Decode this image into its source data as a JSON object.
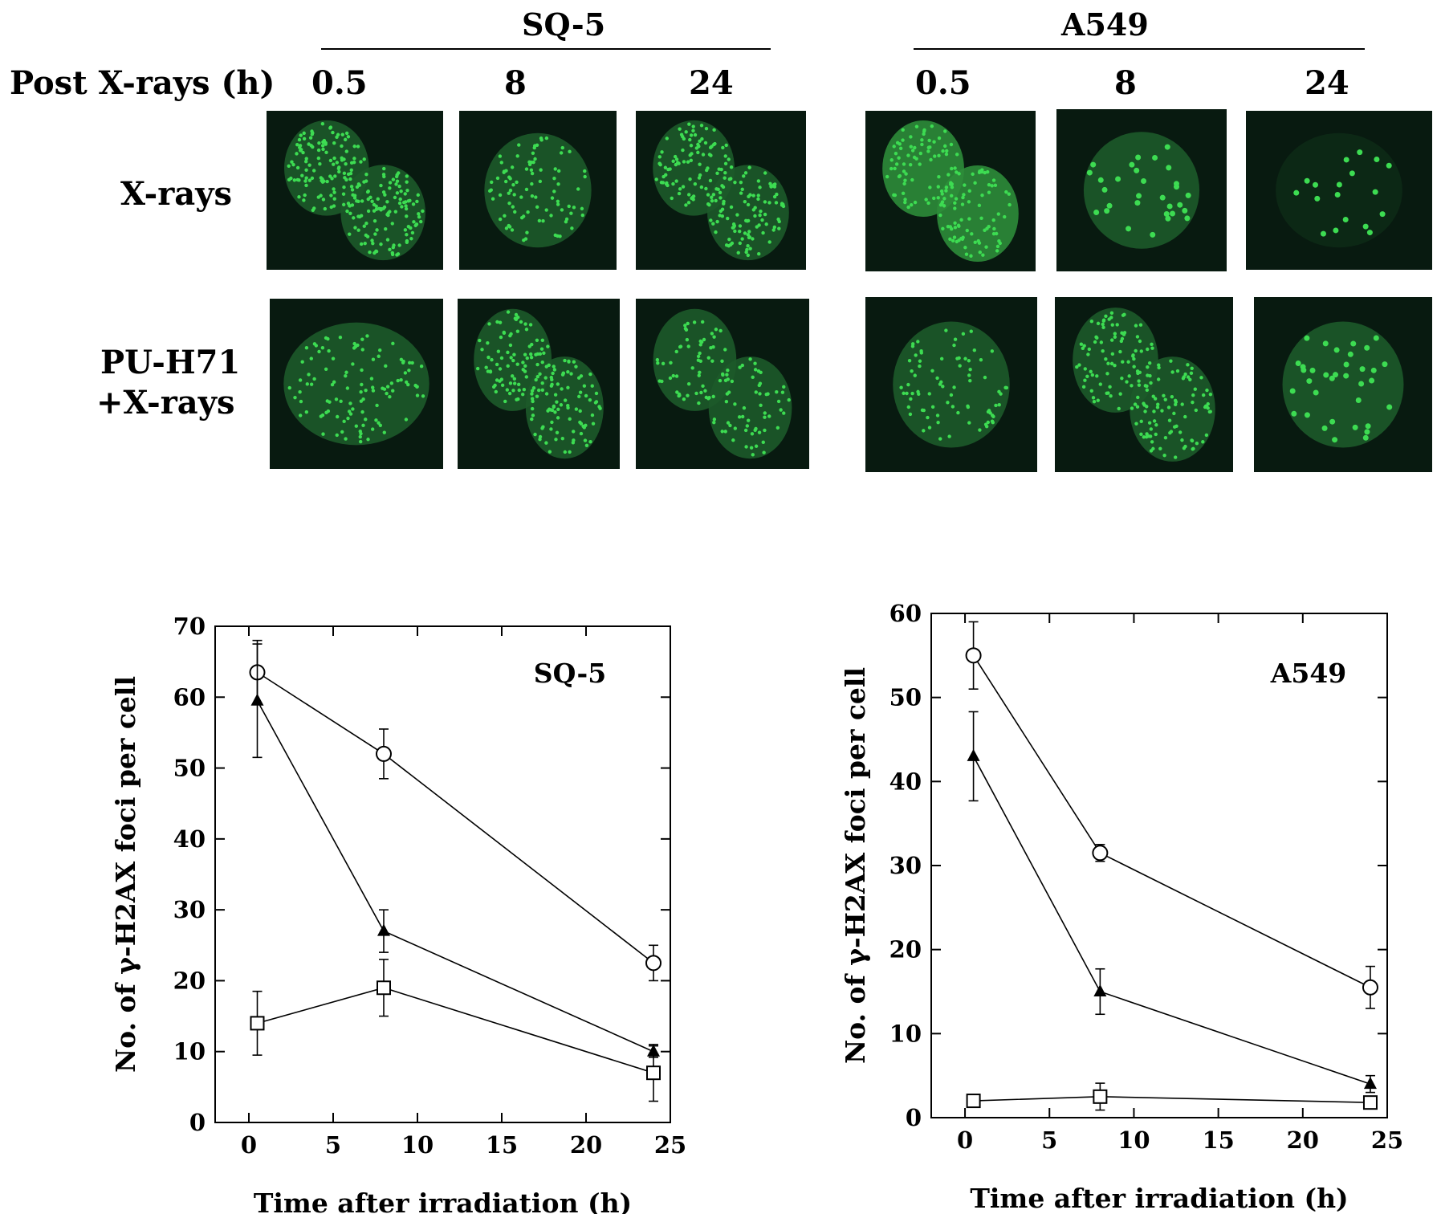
{
  "figure": {
    "group_labels": {
      "left": "SQ-5",
      "right": "A549"
    },
    "time_header": "Post X-rays  (h)",
    "time_points": {
      "left": [
        "0.5",
        "8",
        "24"
      ],
      "right": [
        "0.5",
        "8",
        "24"
      ]
    },
    "rows": [
      {
        "label": "X-rays"
      },
      {
        "label_line1": "PU-H71",
        "label_line2": "+X-rays"
      }
    ],
    "micrograph_colors": {
      "background": "#081a10",
      "foci": "#3ddc52"
    }
  },
  "chart_data": [
    {
      "type": "line",
      "title": "SQ-5",
      "xlabel": "Time after irradiation (h)",
      "ylabel": "No. of γ-H2AX foci per cell",
      "xlim": [
        -2,
        25
      ],
      "ylim": [
        0,
        70
      ],
      "xticks": [
        0,
        5,
        10,
        15,
        20,
        25
      ],
      "yticks": [
        0,
        10,
        20,
        30,
        40,
        50,
        60,
        70
      ],
      "series": [
        {
          "marker": "open-circle",
          "x": [
            0.5,
            8,
            24
          ],
          "y": [
            63.5,
            52,
            22.5
          ],
          "err": [
            4.5,
            3.5,
            2.5
          ]
        },
        {
          "marker": "filled-triangle",
          "x": [
            0.5,
            8,
            24
          ],
          "y": [
            59.5,
            27,
            10
          ],
          "err": [
            8,
            3,
            0.8
          ]
        },
        {
          "marker": "open-square",
          "x": [
            0.5,
            8,
            24
          ],
          "y": [
            14,
            19,
            7
          ],
          "err": [
            4.5,
            4,
            4
          ]
        }
      ]
    },
    {
      "type": "line",
      "title": "A549",
      "xlabel": "Time after irradiation (h)",
      "ylabel": "No. of γ-H2AX foci per cell",
      "xlim": [
        -2,
        25
      ],
      "ylim": [
        0,
        60
      ],
      "xticks": [
        0,
        5,
        10,
        15,
        20,
        25
      ],
      "yticks": [
        0,
        10,
        20,
        30,
        40,
        50,
        60
      ],
      "series": [
        {
          "marker": "open-circle",
          "x": [
            0.5,
            8,
            24
          ],
          "y": [
            55,
            31.5,
            15.5
          ],
          "err": [
            4,
            1,
            2.5
          ]
        },
        {
          "marker": "filled-triangle",
          "x": [
            0.5,
            8,
            24
          ],
          "y": [
            43,
            15,
            4
          ],
          "err": [
            5.3,
            2.7,
            1
          ]
        },
        {
          "marker": "open-square",
          "x": [
            0.5,
            8,
            24
          ],
          "y": [
            2,
            2.5,
            1.8
          ],
          "err": [
            0.6,
            1.6,
            0.5
          ]
        }
      ]
    }
  ]
}
